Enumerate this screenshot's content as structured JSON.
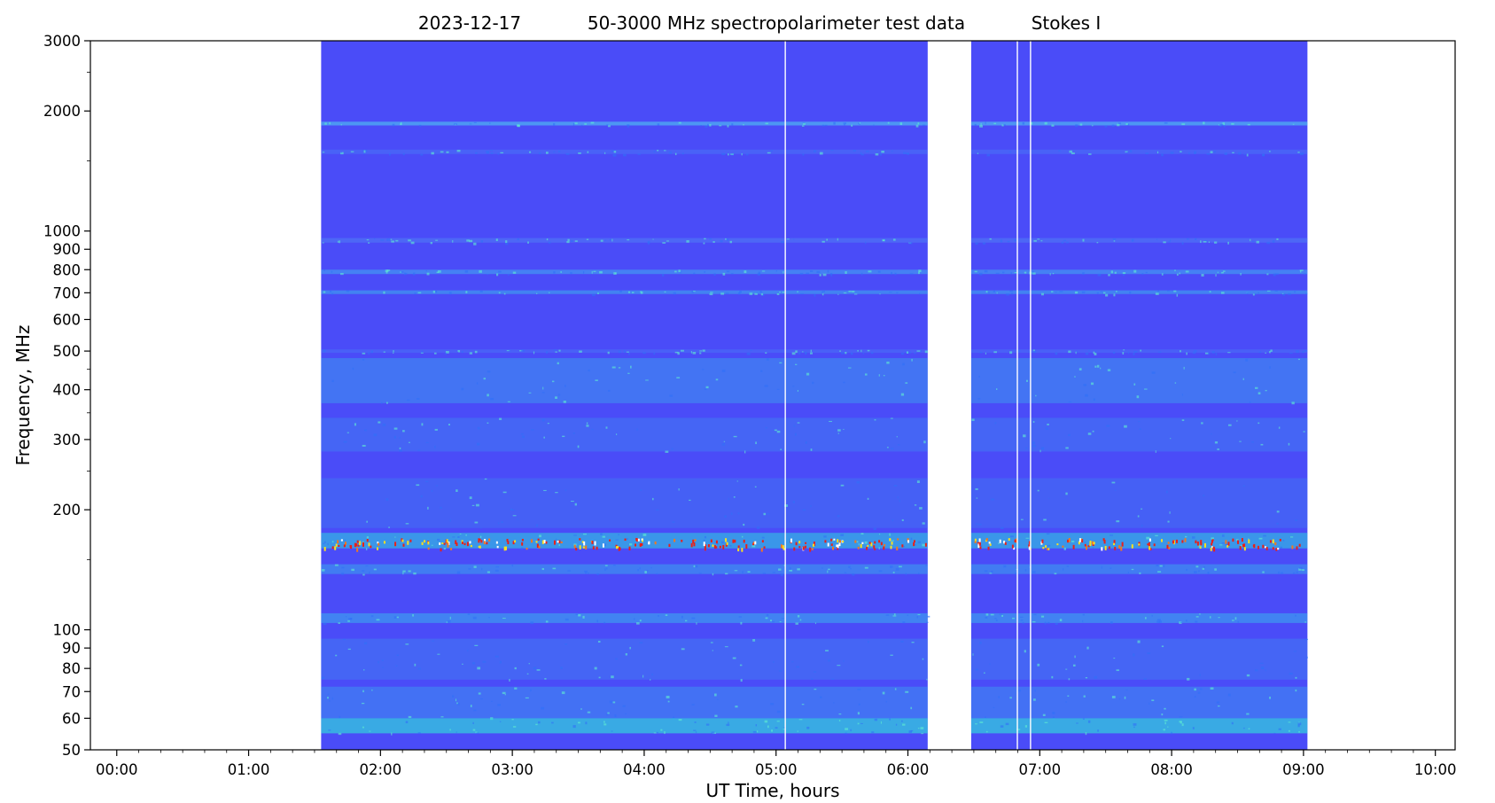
{
  "chart_data": {
    "type": "heatmap",
    "title_parts": [
      "2023-12-17",
      "50-3000 MHz spectropolarimeter test data",
      "Stokes I"
    ],
    "xlabel": "UT Time, hours",
    "ylabel": "Frequency, MHz",
    "xlim_hours": [
      -0.2,
      10.15
    ],
    "ylim": [
      50,
      3000
    ],
    "yscale": "log",
    "x_ticks": [
      {
        "value": 0,
        "label": "00:00"
      },
      {
        "value": 1,
        "label": "01:00"
      },
      {
        "value": 2,
        "label": "02:00"
      },
      {
        "value": 3,
        "label": "03:00"
      },
      {
        "value": 4,
        "label": "04:00"
      },
      {
        "value": 5,
        "label": "05:00"
      },
      {
        "value": 6,
        "label": "06:00"
      },
      {
        "value": 7,
        "label": "07:00"
      },
      {
        "value": 8,
        "label": "08:00"
      },
      {
        "value": 9,
        "label": "09:00"
      },
      {
        "value": 10,
        "label": "10:00"
      }
    ],
    "y_ticks": [
      {
        "value": 50,
        "label": "50"
      },
      {
        "value": 60,
        "label": "60"
      },
      {
        "value": 70,
        "label": "70"
      },
      {
        "value": 80,
        "label": "80"
      },
      {
        "value": 90,
        "label": "90"
      },
      {
        "value": 100,
        "label": "100"
      },
      {
        "value": 200,
        "label": "200"
      },
      {
        "value": 300,
        "label": "300"
      },
      {
        "value": 400,
        "label": "400"
      },
      {
        "value": 500,
        "label": "500"
      },
      {
        "value": 600,
        "label": "600"
      },
      {
        "value": 700,
        "label": "700"
      },
      {
        "value": 800,
        "label": "800"
      },
      {
        "value": 900,
        "label": "900"
      },
      {
        "value": 1000,
        "label": "1000"
      },
      {
        "value": 2000,
        "label": "2000"
      },
      {
        "value": 3000,
        "label": "3000"
      }
    ],
    "y_minor_ticks": [
      150,
      250,
      350,
      450,
      1500,
      2500
    ],
    "data_segments": [
      {
        "start": 1.55,
        "end": 6.15
      },
      {
        "start": 6.48,
        "end": 9.03
      }
    ],
    "data_gaps": [
      5.07,
      6.83,
      6.93
    ],
    "background_color": "#4a4cf8",
    "bands": [
      {
        "fmin": 1840,
        "fmax": 1880,
        "color": "#50c8f0",
        "strength": 0.8
      },
      {
        "fmin": 1560,
        "fmax": 1600,
        "color": "#4aa0f4",
        "strength": 0.35
      },
      {
        "fmin": 935,
        "fmax": 960,
        "color": "#5080f4",
        "strength": 0.7
      },
      {
        "fmin": 780,
        "fmax": 800,
        "color": "#40c0f0",
        "strength": 0.6
      },
      {
        "fmin": 695,
        "fmax": 710,
        "color": "#38d0e8",
        "strength": 0.55
      },
      {
        "fmin": 495,
        "fmax": 505,
        "color": "#4a90f4",
        "strength": 0.4
      },
      {
        "fmin": 370,
        "fmax": 480,
        "color": "#3ab0ec",
        "strength": 0.55
      },
      {
        "fmin": 280,
        "fmax": 340,
        "color": "#3c98f0",
        "strength": 0.45
      },
      {
        "fmin": 180,
        "fmax": 240,
        "color": "#3c90f0",
        "strength": 0.4
      },
      {
        "fmin": 160,
        "fmax": 175,
        "color": "#30c8e0",
        "strength": 0.8
      },
      {
        "fmin": 138,
        "fmax": 146,
        "color": "#38b8ec",
        "strength": 0.6
      },
      {
        "fmin": 104,
        "fmax": 110,
        "color": "#38c8ec",
        "strength": 0.6
      },
      {
        "fmin": 75,
        "fmax": 95,
        "color": "#3c98f0",
        "strength": 0.45
      },
      {
        "fmin": 60,
        "fmax": 72,
        "color": "#38b0ec",
        "strength": 0.5
      },
      {
        "fmin": 55,
        "fmax": 60,
        "color": "#30e0d8",
        "strength": 0.85
      }
    ],
    "rfi_band": {
      "fmin": 160,
      "fmax": 170
    }
  }
}
